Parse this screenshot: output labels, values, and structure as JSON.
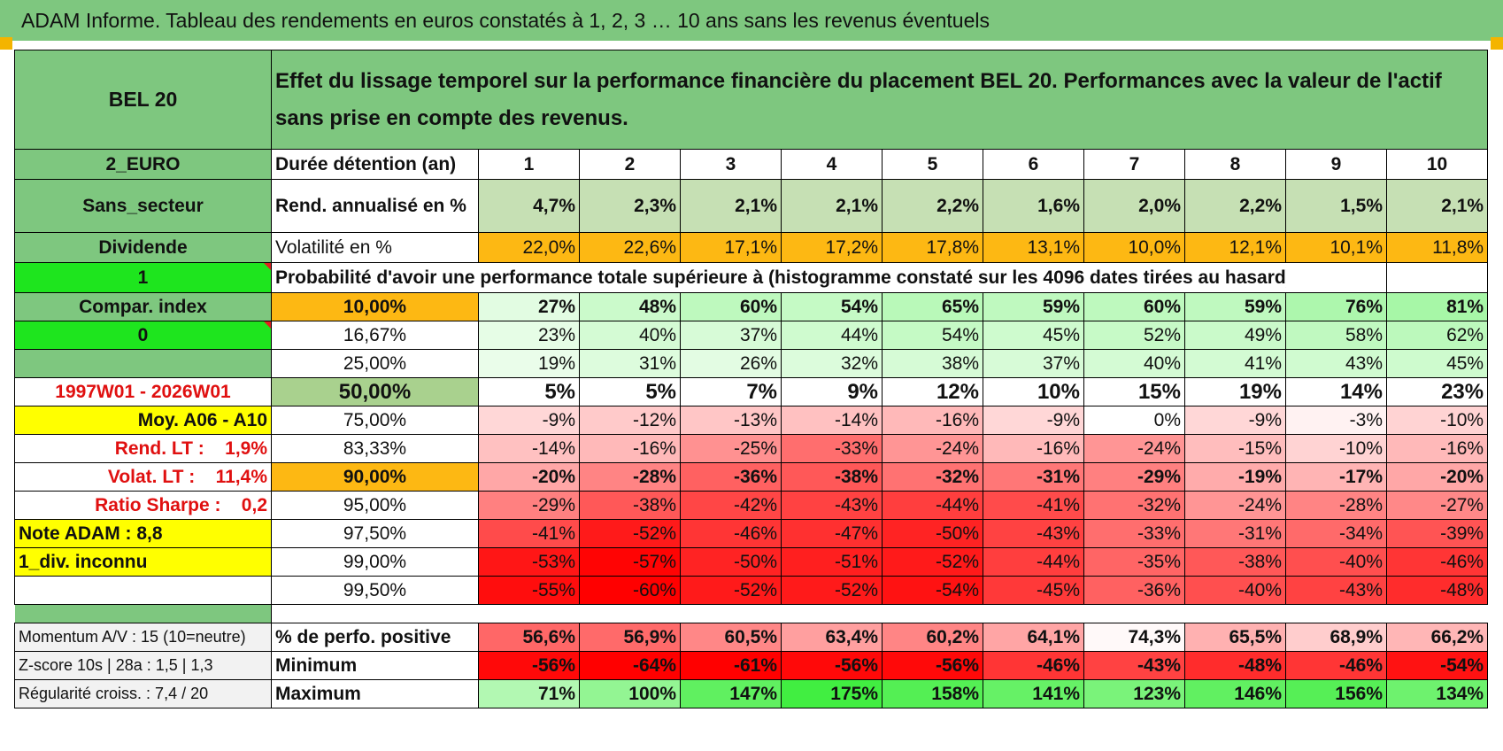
{
  "title": "ADAM Informe. Tableau des rendements en euros constatés à 1, 2, 3 … 10 ans sans les revenus éventuels",
  "header": {
    "asset": "BEL 20",
    "description": "Effet du lissage temporel sur la performance financière du placement BEL 20. Performances avec la valeur de l'actif sans prise en compte des revenus."
  },
  "colors": {
    "accent_green": "#7ec77f",
    "lime": "#1ee51e",
    "yellow": "#ffff00",
    "orange": "#fdb813",
    "red_text": "#e01010"
  },
  "left_labels": {
    "currency": "2_EURO",
    "sector": "Sans_secteur",
    "dividend": "Dividende",
    "param1": "1",
    "compar": "Compar. index",
    "param0": "0",
    "empty_green": "",
    "period": "1997W01 - 2026W01",
    "moy": "Moy. A06 - A10",
    "rend_lt": "Rend. LT :    1,9%",
    "volat_lt": "Volat. LT :    11,4%",
    "sharpe": "Ratio Sharpe :    0,2",
    "note": "Note ADAM : 8,8",
    "div_unknown": "1_div. inconnu"
  },
  "rows_header": {
    "duration_label": "Durée détention (an)",
    "years": [
      "1",
      "2",
      "3",
      "4",
      "5",
      "6",
      "7",
      "8",
      "9",
      "10"
    ],
    "rend_label": "Rend. annualisé en %",
    "rend": [
      "4,7%",
      "2,3%",
      "2,1%",
      "2,1%",
      "2,2%",
      "1,6%",
      "2,0%",
      "2,2%",
      "1,5%",
      "2,1%"
    ],
    "vol_label": "Volatilité en %",
    "vol": [
      "22,0%",
      "22,6%",
      "17,1%",
      "17,2%",
      "17,8%",
      "13,1%",
      "10,0%",
      "12,1%",
      "10,1%",
      "11,8%"
    ],
    "prob_text": "Probabilité d'avoir une performance totale supérieure à (histogramme constaté sur les 4096 dates tirées au hasard)"
  },
  "prob_rows": [
    {
      "pct": "10,00%",
      "vals": [
        "27%",
        "48%",
        "60%",
        "54%",
        "65%",
        "59%",
        "60%",
        "59%",
        "76%",
        "81%"
      ]
    },
    {
      "pct": "16,67%",
      "vals": [
        "23%",
        "40%",
        "37%",
        "44%",
        "54%",
        "45%",
        "52%",
        "49%",
        "58%",
        "62%"
      ]
    },
    {
      "pct": "25,00%",
      "vals": [
        "19%",
        "31%",
        "26%",
        "32%",
        "38%",
        "37%",
        "40%",
        "41%",
        "43%",
        "45%"
      ]
    },
    {
      "pct": "50,00%",
      "vals": [
        "5%",
        "5%",
        "7%",
        "9%",
        "12%",
        "10%",
        "15%",
        "19%",
        "14%",
        "23%"
      ]
    },
    {
      "pct": "75,00%",
      "vals": [
        "-9%",
        "-12%",
        "-13%",
        "-14%",
        "-16%",
        "-9%",
        "0%",
        "-9%",
        "-3%",
        "-10%"
      ]
    },
    {
      "pct": "83,33%",
      "vals": [
        "-14%",
        "-16%",
        "-25%",
        "-33%",
        "-24%",
        "-16%",
        "-24%",
        "-15%",
        "-10%",
        "-16%"
      ]
    },
    {
      "pct": "90,00%",
      "vals": [
        "-20%",
        "-28%",
        "-36%",
        "-38%",
        "-32%",
        "-31%",
        "-29%",
        "-19%",
        "-17%",
        "-20%"
      ]
    },
    {
      "pct": "95,00%",
      "vals": [
        "-29%",
        "-38%",
        "-42%",
        "-43%",
        "-44%",
        "-41%",
        "-32%",
        "-24%",
        "-28%",
        "-27%"
      ]
    },
    {
      "pct": "97,50%",
      "vals": [
        "-41%",
        "-52%",
        "-46%",
        "-47%",
        "-50%",
        "-43%",
        "-33%",
        "-31%",
        "-34%",
        "-39%"
      ]
    },
    {
      "pct": "99,00%",
      "vals": [
        "-53%",
        "-57%",
        "-50%",
        "-51%",
        "-52%",
        "-44%",
        "-35%",
        "-38%",
        "-40%",
        "-46%"
      ]
    },
    {
      "pct": "99,50%",
      "vals": [
        "-55%",
        "-60%",
        "-52%",
        "-52%",
        "-54%",
        "-45%",
        "-36%",
        "-40%",
        "-43%",
        "-48%"
      ]
    }
  ],
  "bottom": {
    "momentum": "Momentum A/V : 15 (10=neutre)",
    "zscore": "Z-score 10s | 28a : 1,5 | 1,3",
    "regularite": "Régularité croiss. : 7,4 / 20",
    "pos_label": "% de perfo. positive",
    "pos": [
      "56,6%",
      "56,9%",
      "60,5%",
      "63,4%",
      "60,2%",
      "64,1%",
      "74,3%",
      "65,5%",
      "68,9%",
      "66,2%"
    ],
    "min_label": "Minimum",
    "min": [
      "-56%",
      "-64%",
      "-61%",
      "-56%",
      "-56%",
      "-46%",
      "-43%",
      "-48%",
      "-46%",
      "-54%"
    ],
    "max_label": "Maximum",
    "max": [
      "71%",
      "100%",
      "147%",
      "175%",
      "158%",
      "141%",
      "123%",
      "146%",
      "156%",
      "134%"
    ]
  }
}
